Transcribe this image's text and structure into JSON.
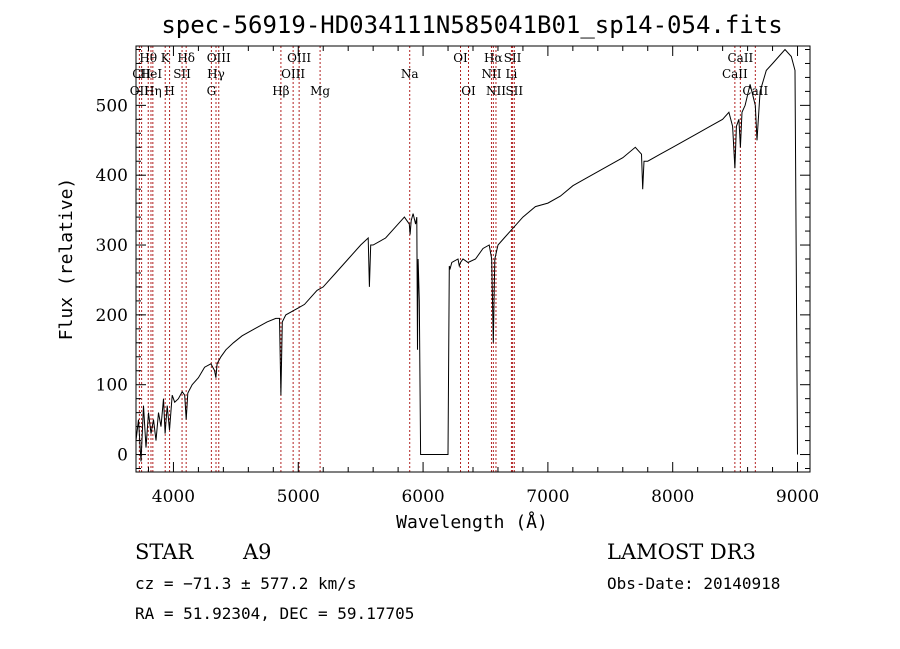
{
  "chart_data": {
    "type": "line",
    "title": "spec-56919-HD034111N585041B01_sp14-054.fits",
    "xlabel": "Wavelength (Å)",
    "ylabel": "Flux (relative)",
    "xlim": [
      3700,
      9100
    ],
    "ylim": [
      -25,
      585
    ],
    "x_ticks": [
      4000,
      5000,
      6000,
      7000,
      8000,
      9000
    ],
    "y_ticks": [
      0,
      100,
      200,
      300,
      400,
      500
    ],
    "x_tick_labels": [
      "4000",
      "5000",
      "6000",
      "7000",
      "8000",
      "9000"
    ],
    "y_tick_labels": [
      "0",
      "100",
      "200",
      "300",
      "400",
      "500"
    ],
    "series": [
      {
        "name": "flux",
        "x": [
          3700,
          3720,
          3740,
          3760,
          3780,
          3800,
          3820,
          3840,
          3860,
          3880,
          3900,
          3920,
          3933,
          3950,
          3968,
          3990,
          4010,
          4040,
          4070,
          4090,
          4102,
          4115,
          4150,
          4200,
          4250,
          4300,
          4330,
          4340,
          4350,
          4380,
          4420,
          4480,
          4550,
          4650,
          4750,
          4820,
          4850,
          4861,
          4872,
          4900,
          4950,
          5000,
          5050,
          5100,
          5150,
          5200,
          5300,
          5400,
          5500,
          5560,
          5570,
          5580,
          5600,
          5700,
          5800,
          5850,
          5890,
          5896,
          5905,
          5920,
          5940,
          5950,
          5955,
          5960,
          5970,
          5980,
          5990,
          6000,
          6100,
          6200,
          6210,
          6215,
          6230,
          6280,
          6290,
          6300,
          6320,
          6360,
          6420,
          6480,
          6530,
          6550,
          6563,
          6575,
          6600,
          6650,
          6700,
          6800,
          6900,
          7000,
          7100,
          7200,
          7300,
          7400,
          7500,
          7600,
          7700,
          7750,
          7760,
          7770,
          7800,
          7900,
          8000,
          8100,
          8200,
          8300,
          8400,
          8450,
          8480,
          8498,
          8510,
          8530,
          8542,
          8555,
          8580,
          8620,
          8662,
          8675,
          8700,
          8750,
          8800,
          8850,
          8900,
          8950,
          8980,
          9000
        ],
        "values": [
          20,
          50,
          -10,
          70,
          10,
          60,
          30,
          50,
          20,
          60,
          40,
          80,
          30,
          70,
          35,
          85,
          75,
          80,
          90,
          85,
          50,
          88,
          100,
          110,
          125,
          130,
          120,
          110,
          130,
          140,
          150,
          160,
          170,
          180,
          190,
          195,
          195,
          85,
          190,
          200,
          205,
          210,
          215,
          225,
          235,
          240,
          260,
          280,
          300,
          310,
          240,
          300,
          300,
          310,
          330,
          340,
          330,
          315,
          335,
          345,
          330,
          340,
          150,
          280,
          220,
          0,
          0,
          0,
          0,
          0,
          270,
          265,
          275,
          280,
          270,
          275,
          280,
          275,
          280,
          295,
          300,
          280,
          160,
          280,
          300,
          310,
          320,
          340,
          355,
          360,
          370,
          385,
          395,
          405,
          415,
          425,
          440,
          430,
          380,
          420,
          420,
          430,
          440,
          450,
          460,
          470,
          480,
          490,
          470,
          410,
          470,
          480,
          440,
          490,
          500,
          530,
          500,
          450,
          520,
          550,
          560,
          570,
          580,
          570,
          550,
          0
        ]
      }
    ],
    "line_markers": [
      {
        "label": "Hθ",
        "x": 3798,
        "row": 1
      },
      {
        "label": "CII",
        "x": 3745,
        "row": 2
      },
      {
        "label": "OII",
        "x": 3727,
        "row": 3
      },
      {
        "label": "HeI",
        "x": 3820,
        "row": 2
      },
      {
        "label": "Hη",
        "x": 3835,
        "row": 3
      },
      {
        "label": "K",
        "x": 3934,
        "row": 1
      },
      {
        "label": "H",
        "x": 3969,
        "row": 3
      },
      {
        "label": "SII",
        "x": 4069,
        "row": 2
      },
      {
        "label": "Hδ",
        "x": 4102,
        "row": 1
      },
      {
        "label": "OIII",
        "x": 4363,
        "row": 1
      },
      {
        "label": "Hγ",
        "x": 4341,
        "row": 2
      },
      {
        "label": "G",
        "x": 4304,
        "row": 3
      },
      {
        "label": "OIII",
        "x": 5007,
        "row": 1
      },
      {
        "label": "OIII",
        "x": 4959,
        "row": 2
      },
      {
        "label": "Hβ",
        "x": 4861,
        "row": 3
      },
      {
        "label": "Mg",
        "x": 5175,
        "row": 3
      },
      {
        "label": "Na",
        "x": 5893,
        "row": 2
      },
      {
        "label": "OI",
        "x": 6300,
        "row": 1
      },
      {
        "label": "OI",
        "x": 6364,
        "row": 3
      },
      {
        "label": "Hα",
        "x": 6563,
        "row": 1
      },
      {
        "label": "SII",
        "x": 6717,
        "row": 1
      },
      {
        "label": "NII",
        "x": 6548,
        "row": 2
      },
      {
        "label": "Li",
        "x": 6708,
        "row": 2
      },
      {
        "label": "NII",
        "x": 6584,
        "row": 3
      },
      {
        "label": "SII",
        "x": 6731,
        "row": 3
      },
      {
        "label": "CaII",
        "x": 8542,
        "row": 1
      },
      {
        "label": "CaII",
        "x": 8498,
        "row": 2
      },
      {
        "label": "CaII",
        "x": 8662,
        "row": 3
      }
    ]
  },
  "info": {
    "object_class": "STAR",
    "subclass": "A9",
    "survey": "LAMOST DR3",
    "cz": "cz = −71.3 ± 577.2 km/s",
    "obs_date": "Obs-Date: 20140918",
    "coords": "RA =  51.92304, DEC =  59.17705"
  },
  "colors": {
    "spectrum": "#000000",
    "marker_lines": "#b22222",
    "axis": "#000000"
  }
}
